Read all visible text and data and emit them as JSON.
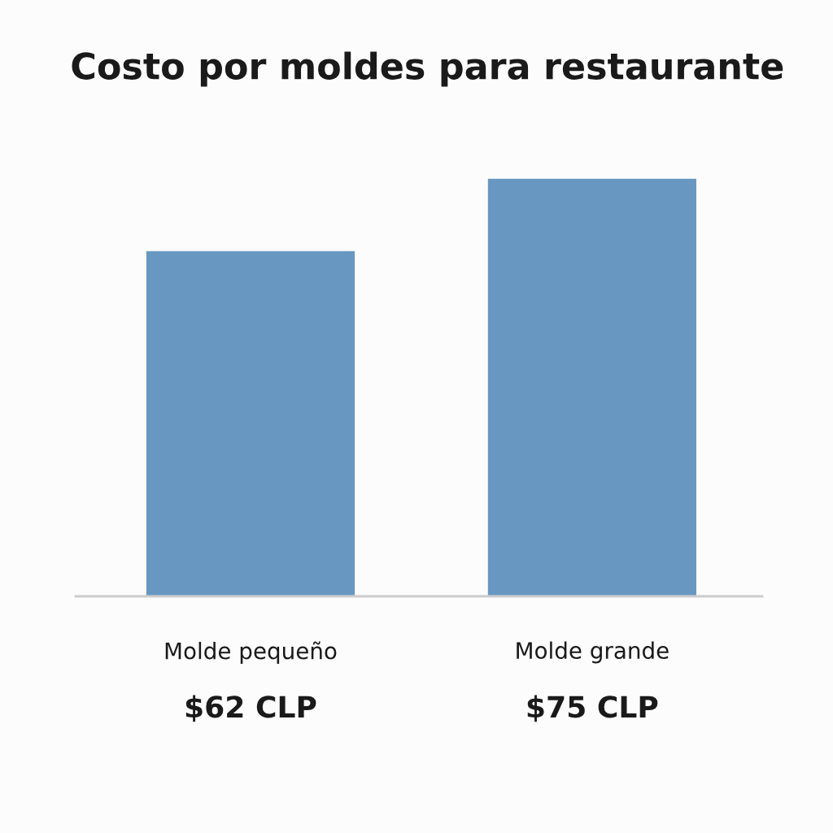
{
  "chart_data": {
    "type": "bar",
    "title": "Costo por moldes para restaurante",
    "categories": [
      "Molde pequeño",
      "Molde grande"
    ],
    "values": [
      62,
      75
    ],
    "tick_labels": "x",
    "value_labels": [
      "$62 CLP",
      "$75 CLP"
    ],
    "color": "#6897c2",
    "grid": false,
    "legend": false
  }
}
